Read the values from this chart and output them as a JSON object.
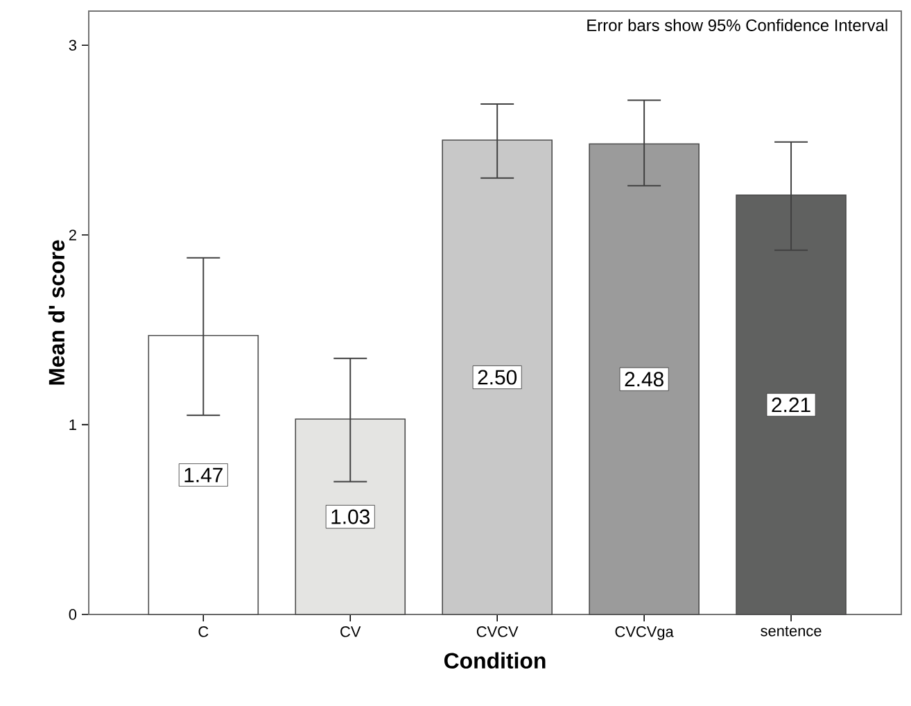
{
  "chart_data": {
    "type": "bar",
    "xlabel": "Condition",
    "ylabel": "Mean d' score",
    "categories": [
      "C",
      "CV",
      "CVCV",
      "CVCVga",
      "sentence"
    ],
    "values": [
      1.47,
      1.03,
      2.5,
      2.48,
      2.21
    ],
    "colors": [
      "#ffffff",
      "#e4e4e2",
      "#c8c8c8",
      "#9b9b9b",
      "#606160"
    ],
    "errors": [
      [
        1.05,
        1.88
      ],
      [
        0.7,
        1.35
      ],
      [
        2.3,
        2.69
      ],
      [
        2.26,
        2.71
      ],
      [
        1.92,
        2.49
      ]
    ],
    "value_labels": [
      "1.47",
      "1.03",
      "2.50",
      "2.48",
      "2.21"
    ],
    "ylim": [
      0,
      3.18
    ],
    "yticks": [
      0,
      1,
      2,
      3
    ],
    "grid": false,
    "annotations": [
      "Error bars show 95% Confidence Interval"
    ]
  }
}
